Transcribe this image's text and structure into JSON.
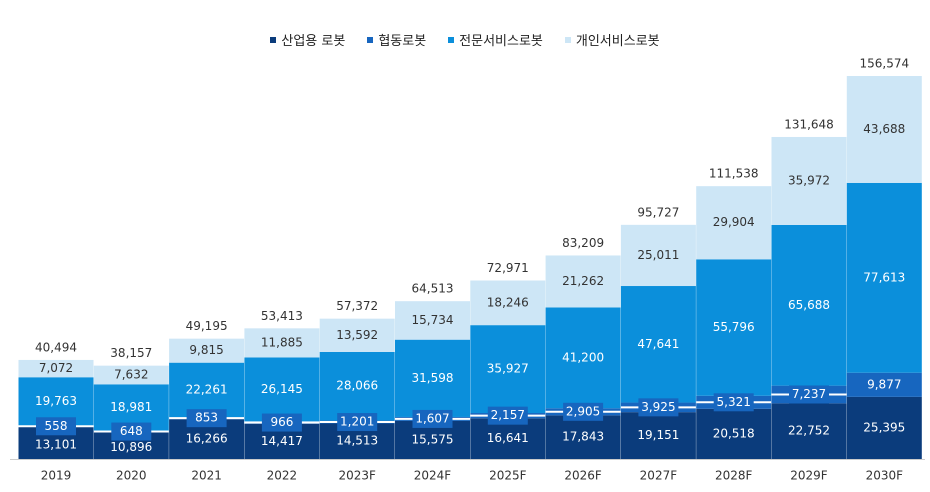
{
  "chart_data": {
    "type": "bar",
    "stacked": true,
    "categories": [
      "2019",
      "2020",
      "2021",
      "2022",
      "2023F",
      "2024F",
      "2025F",
      "2026F",
      "2027F",
      "2028F",
      "2029F",
      "2030F"
    ],
    "series": [
      {
        "name": "산업용 로봇",
        "color": "#0b3c7c",
        "values": [
          13101,
          10896,
          16266,
          14417,
          14513,
          15575,
          16641,
          17843,
          19151,
          20518,
          22752,
          25395
        ]
      },
      {
        "name": "협동로봇",
        "color": "#1766bf",
        "values": [
          558,
          648,
          853,
          966,
          1201,
          1607,
          2157,
          2905,
          3925,
          5321,
          7237,
          9877
        ]
      },
      {
        "name": "전문서비스로봇",
        "color": "#0b8fdb",
        "values": [
          19763,
          18981,
          22261,
          26145,
          28066,
          31598,
          35927,
          41200,
          47641,
          55796,
          65688,
          77613
        ]
      },
      {
        "name": "개인서비스로봇",
        "color": "#cde6f6",
        "values": [
          7072,
          7632,
          9815,
          11885,
          13592,
          15734,
          18246,
          21262,
          25011,
          29904,
          35972,
          43688
        ]
      }
    ],
    "totals": [
      40494,
      38157,
      49195,
      53413,
      57372,
      64513,
      72971,
      83209,
      95727,
      111538,
      131648,
      156574
    ],
    "legend_position": "top",
    "grid": false,
    "ylim": [
      0,
      175000
    ]
  }
}
